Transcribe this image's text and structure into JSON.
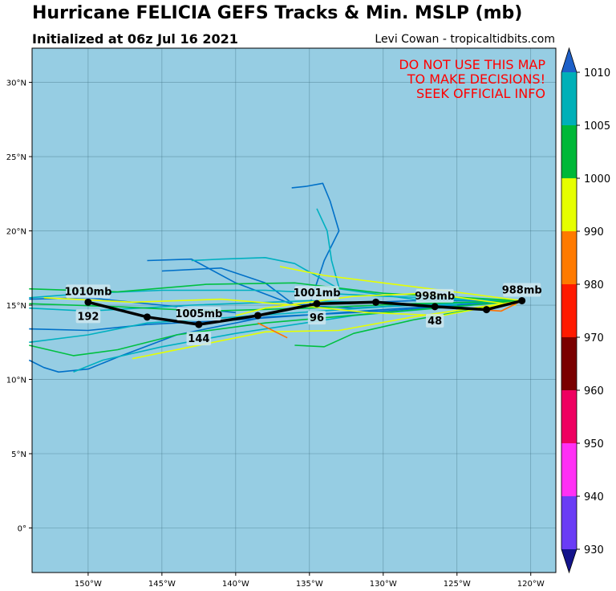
{
  "header": {
    "title": "Hurricane FELICIA GEFS Tracks & Min. MSLP (mb)",
    "initialized": "Initialized at 06z Jul 16 2021",
    "credit": "Levi Cowan - tropicaltidbits.com"
  },
  "warning": [
    "DO NOT USE THIS MAP",
    "TO MAKE DECISIONS!",
    "SEEK OFFICIAL INFO"
  ],
  "map": {
    "lon_range": [
      -153.8,
      -118.3
    ],
    "lat_range": [
      -3.0,
      32.3
    ],
    "lon_ticks": [
      {
        "value": -150,
        "label": "150°W"
      },
      {
        "value": -145,
        "label": "145°W"
      },
      {
        "value": -140,
        "label": "140°W"
      },
      {
        "value": -135,
        "label": "135°W"
      },
      {
        "value": -130,
        "label": "130°W"
      },
      {
        "value": -125,
        "label": "125°W"
      },
      {
        "value": -120,
        "label": "120°W"
      }
    ],
    "lat_ticks": [
      {
        "value": 0,
        "label": "0°"
      },
      {
        "value": 5,
        "label": "5°N"
      },
      {
        "value": 10,
        "label": "10°N"
      },
      {
        "value": 15,
        "label": "15°N"
      },
      {
        "value": 20,
        "label": "20°N"
      },
      {
        "value": 25,
        "label": "25°N"
      },
      {
        "value": 30,
        "label": "30°N"
      }
    ],
    "ocean_color": "#96cde3"
  },
  "ensemble_mean_track": [
    [
      -120.6,
      15.3
    ],
    [
      -123.0,
      14.7
    ],
    [
      -126.5,
      14.9
    ],
    [
      -130.5,
      15.2
    ],
    [
      -134.5,
      15.1
    ],
    [
      -138.5,
      14.3
    ],
    [
      -142.5,
      13.7
    ],
    [
      -146.0,
      14.2
    ],
    [
      -150.0,
      15.2
    ]
  ],
  "mean_track_labels": [
    {
      "lon": -120.6,
      "lat": 15.3,
      "pressure": "988mb",
      "hour": ""
    },
    {
      "lon": -126.5,
      "lat": 14.9,
      "pressure": "998mb",
      "hour": "48"
    },
    {
      "lon": -134.5,
      "lat": 15.1,
      "pressure": "1001mb",
      "hour": "96"
    },
    {
      "lon": -142.5,
      "lat": 13.7,
      "pressure": "1005mb",
      "hour": "144"
    },
    {
      "lon": -150.0,
      "lat": 15.2,
      "pressure": "1010mb",
      "hour": "192"
    }
  ],
  "member_tracks": [
    {
      "color": "#0070c8",
      "points": [
        [
          -120.6,
          15.3
        ],
        [
          -126,
          15.1
        ],
        [
          -132,
          14.8
        ],
        [
          -136,
          15.0
        ],
        [
          -138,
          16.5
        ],
        [
          -141,
          17.5
        ],
        [
          -145,
          17.3
        ]
      ]
    },
    {
      "color": "#0070c8",
      "points": [
        [
          -135,
          15.0
        ],
        [
          -134,
          18
        ],
        [
          -133,
          20
        ],
        [
          -133.6,
          22
        ],
        [
          -134.1,
          23.2
        ],
        [
          -135.2,
          23.0
        ],
        [
          -136.2,
          22.9
        ]
      ]
    },
    {
      "color": "#0070c8",
      "points": [
        [
          -120.6,
          15.3
        ],
        [
          -128,
          15.3
        ],
        [
          -136,
          15.0
        ],
        [
          -140,
          16.5
        ],
        [
          -143,
          18.1
        ],
        [
          -146,
          18.0
        ]
      ]
    },
    {
      "color": "#0070c8",
      "points": [
        [
          -120.6,
          15.3
        ],
        [
          -130,
          14.6
        ],
        [
          -138,
          14.2
        ],
        [
          -144,
          13.0
        ],
        [
          -148,
          11.5
        ],
        [
          -150,
          10.7
        ],
        [
          -152,
          10.5
        ],
        [
          -153,
          10.8
        ],
        [
          -154,
          11.3
        ]
      ]
    },
    {
      "color": "#0070c8",
      "points": [
        [
          -120.6,
          15.3
        ],
        [
          -130,
          14.7
        ],
        [
          -140,
          14.0
        ],
        [
          -146,
          13.7
        ],
        [
          -150,
          13.3
        ],
        [
          -154,
          13.4
        ]
      ]
    },
    {
      "color": "#0070c8",
      "points": [
        [
          -140,
          14.5
        ],
        [
          -145,
          15.0
        ],
        [
          -150,
          15.5
        ],
        [
          -154,
          15.4
        ]
      ]
    },
    {
      "color": "#00b0c0",
      "points": [
        [
          -120.6,
          15.3
        ],
        [
          -128,
          15.4
        ],
        [
          -133,
          16.1
        ],
        [
          -136,
          17.8
        ],
        [
          -138,
          18.2
        ],
        [
          -141,
          18.1
        ],
        [
          -143,
          18.0
        ]
      ]
    },
    {
      "color": "#00b0c0",
      "points": [
        [
          -133,
          16.2
        ],
        [
          -133.5,
          18
        ],
        [
          -133.8,
          20
        ],
        [
          -134.5,
          21.5
        ]
      ]
    },
    {
      "color": "#00b0c0",
      "points": [
        [
          -120.6,
          15.3
        ],
        [
          -130,
          15.6
        ],
        [
          -138,
          16.0
        ],
        [
          -145,
          16.0
        ],
        [
          -150,
          15.8
        ],
        [
          -154,
          15.5
        ]
      ]
    },
    {
      "color": "#00b0c0",
      "points": [
        [
          -120.6,
          15.3
        ],
        [
          -130,
          14.9
        ],
        [
          -140,
          14.2
        ],
        [
          -146,
          13.8
        ],
        [
          -150,
          13.0
        ],
        [
          -154,
          12.5
        ]
      ]
    },
    {
      "color": "#00b0c0",
      "points": [
        [
          -120.6,
          15.3
        ],
        [
          -132,
          14.3
        ],
        [
          -140,
          13.1
        ],
        [
          -145,
          12.2
        ],
        [
          -149,
          11.3
        ],
        [
          -151,
          10.5
        ]
      ]
    },
    {
      "color": "#00b0c0",
      "points": [
        [
          -125,
          15
        ],
        [
          -135,
          15.3
        ],
        [
          -143,
          15.0
        ],
        [
          -150,
          14.6
        ],
        [
          -154,
          14.8
        ]
      ]
    },
    {
      "color": "#00c040",
      "points": [
        [
          -120.6,
          15.3
        ],
        [
          -130,
          15.8
        ],
        [
          -136,
          16.5
        ],
        [
          -142,
          16.4
        ],
        [
          -148,
          15.9
        ],
        [
          -154,
          16.1
        ]
      ]
    },
    {
      "color": "#00c040",
      "points": [
        [
          -120.6,
          15.3
        ],
        [
          -128,
          14.0
        ],
        [
          -132,
          13.1
        ],
        [
          -134,
          12.2
        ],
        [
          -136,
          12.3
        ]
      ]
    },
    {
      "color": "#00c040",
      "points": [
        [
          -120.6,
          15.3
        ],
        [
          -130,
          14.5
        ],
        [
          -138,
          13.8
        ],
        [
          -144,
          13.0
        ],
        [
          -148,
          12.0
        ],
        [
          -151,
          11.6
        ],
        [
          -154,
          12.3
        ]
      ]
    },
    {
      "color": "#00c040",
      "points": [
        [
          -120.6,
          15.3
        ],
        [
          -128,
          15.1
        ],
        [
          -135,
          14.8
        ],
        [
          -142,
          14.6
        ],
        [
          -148,
          14.9
        ],
        [
          -154,
          15.1
        ]
      ]
    },
    {
      "color": "#e6ff00",
      "points": [
        [
          -120.6,
          15.3
        ],
        [
          -126,
          16.0
        ],
        [
          -130,
          16.5
        ],
        [
          -134,
          17.0
        ],
        [
          -137,
          17.6
        ]
      ]
    },
    {
      "color": "#e6ff00",
      "points": [
        [
          -120.6,
          15.3
        ],
        [
          -128,
          14.2
        ],
        [
          -133,
          13.3
        ],
        [
          -138,
          13.2
        ],
        [
          -143,
          12.2
        ],
        [
          -147,
          11.4
        ]
      ]
    },
    {
      "color": "#e6ff00",
      "points": [
        [
          -120.6,
          15.3
        ],
        [
          -126,
          14.3
        ],
        [
          -131,
          14.5
        ],
        [
          -136,
          15.0
        ],
        [
          -141,
          15.4
        ],
        [
          -147,
          15.2
        ],
        [
          -153,
          15.5
        ]
      ]
    },
    {
      "color": "#e6ff00",
      "points": [
        [
          -121,
          15.0
        ],
        [
          -127,
          15.8
        ],
        [
          -132,
          15.6
        ],
        [
          -138,
          14.8
        ],
        [
          -140,
          14.3
        ]
      ]
    },
    {
      "color": "#ff7000",
      "points": [
        [
          -120.6,
          15.3
        ],
        [
          -122,
          14.6
        ],
        [
          -126,
          14.9
        ]
      ]
    },
    {
      "color": "#ff7000",
      "points": [
        [
          -136.5,
          12.8
        ],
        [
          -138.5,
          13.8
        ]
      ]
    }
  ],
  "colorbar": {
    "ticks": [
      "930",
      "940",
      "950",
      "960",
      "970",
      "980",
      "990",
      "1000",
      "1005",
      "1010"
    ],
    "segments": [
      "#6a3cf5",
      "#ff30f5",
      "#ee0060",
      "#7a0000",
      "#ff1a00",
      "#ff7a00",
      "#e6ff00",
      "#00b838",
      "#00b0b8"
    ],
    "under_color": "#14148c",
    "over_color": "#1e60c8"
  }
}
